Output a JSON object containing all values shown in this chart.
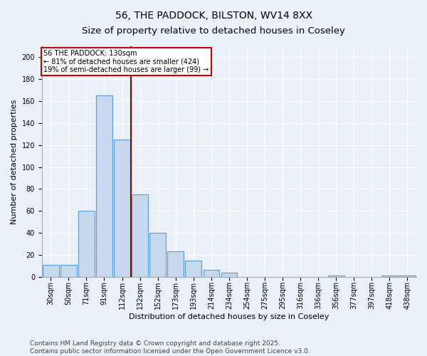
{
  "title_line1": "56, THE PADDOCK, BILSTON, WV14 8XX",
  "title_line2": "Size of property relative to detached houses in Coseley",
  "xlabel": "Distribution of detached houses by size in Coseley",
  "ylabel": "Number of detached properties",
  "categories": [
    "30sqm",
    "50sqm",
    "71sqm",
    "91sqm",
    "112sqm",
    "132sqm",
    "152sqm",
    "173sqm",
    "193sqm",
    "214sqm",
    "234sqm",
    "254sqm",
    "275sqm",
    "295sqm",
    "316sqm",
    "336sqm",
    "356sqm",
    "377sqm",
    "397sqm",
    "418sqm",
    "438sqm"
  ],
  "values": [
    11,
    11,
    60,
    165,
    125,
    75,
    40,
    23,
    15,
    6,
    4,
    0,
    0,
    0,
    0,
    0,
    1,
    0,
    0,
    1,
    1
  ],
  "bar_color": "#c5d8ed",
  "bar_edge_color": "#5b9bd5",
  "vline_between": [
    4,
    5
  ],
  "vline_color": "#8b0000",
  "annotation_text": "56 THE PADDOCK: 130sqm\n← 81% of detached houses are smaller (424)\n19% of semi-detached houses are larger (99) →",
  "annotation_box_color": "#ffffff",
  "annotation_box_edge": "#cc0000",
  "ylim": [
    0,
    210
  ],
  "yticks": [
    0,
    20,
    40,
    60,
    80,
    100,
    120,
    140,
    160,
    180,
    200
  ],
  "footer_line1": "Contains HM Land Registry data © Crown copyright and database right 2025.",
  "footer_line2": "Contains public sector information licensed under the Open Government Licence v3.0.",
  "background_color": "#eaf0f7",
  "plot_bg_color": "#eaf0f7",
  "title_fontsize": 10,
  "axis_label_fontsize": 8,
  "tick_fontsize": 7,
  "footer_fontsize": 6.5,
  "annotation_fontsize": 7
}
